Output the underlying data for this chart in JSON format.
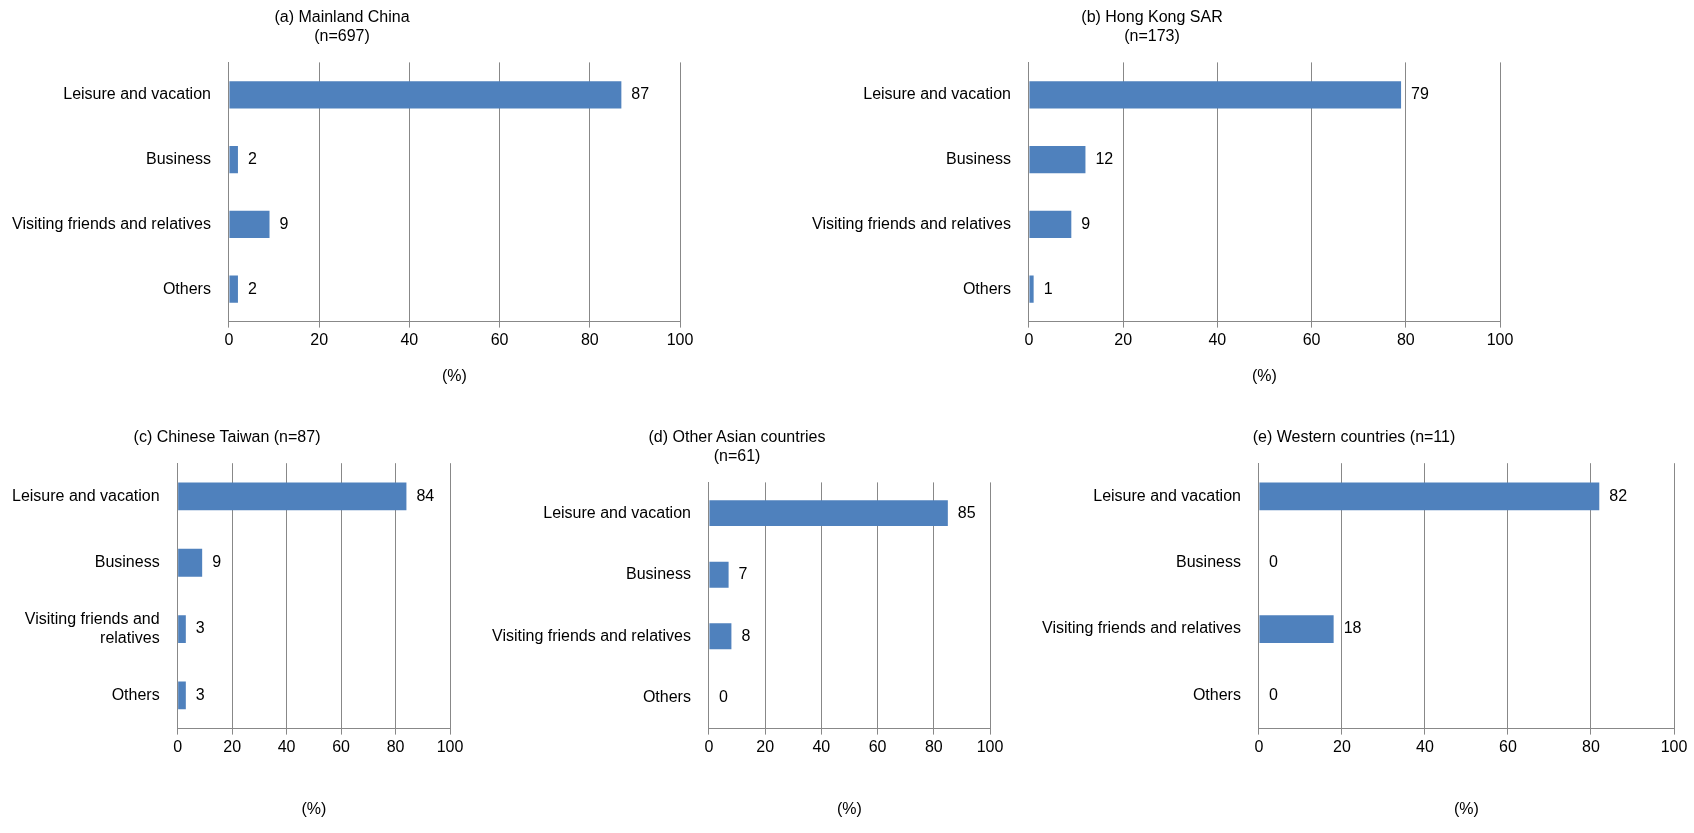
{
  "chart_data": [
    {
      "type": "bar",
      "orientation": "horizontal",
      "title": "(a) Mainland China\n(n=697)",
      "xlabel": "(%)",
      "categories": [
        "Leisure and vacation",
        "Business",
        "Visiting friends and relatives",
        "Others"
      ],
      "values": [
        87,
        2,
        9,
        2
      ],
      "color": "#4f81bd",
      "xlim": [
        0,
        100
      ],
      "xticks": [
        0,
        20,
        40,
        60,
        80,
        100
      ],
      "grid": "x",
      "data_labels": true
    },
    {
      "type": "bar",
      "orientation": "horizontal",
      "title": "(b) Hong Kong SAR\n(n=173)",
      "xlabel": "(%)",
      "categories": [
        "Leisure and vacation",
        "Business",
        "Visiting friends and relatives",
        "Others"
      ],
      "values": [
        79,
        12,
        9,
        1
      ],
      "color": "#4f81bd",
      "xlim": [
        0,
        100
      ],
      "xticks": [
        0,
        20,
        40,
        60,
        80,
        100
      ],
      "grid": "x",
      "data_labels": true
    },
    {
      "type": "bar",
      "orientation": "horizontal",
      "title": "(c) Chinese Taiwan (n=87)",
      "xlabel": "(%)",
      "categories": [
        "Leisure and vacation",
        "Business",
        "Visiting friends and relatives",
        "Others"
      ],
      "values": [
        84,
        9,
        3,
        3
      ],
      "color": "#4f81bd",
      "xlim": [
        0,
        100
      ],
      "xticks": [
        0,
        20,
        40,
        60,
        80,
        100
      ],
      "grid": "x",
      "data_labels": true
    },
    {
      "type": "bar",
      "orientation": "horizontal",
      "title": "(d) Other Asian countries\n(n=61)",
      "xlabel": "(%)",
      "categories": [
        "Leisure and vacation",
        "Business",
        "Visiting friends and relatives",
        "Others"
      ],
      "values": [
        85,
        7,
        8,
        0
      ],
      "color": "#4f81bd",
      "xlim": [
        0,
        100
      ],
      "xticks": [
        0,
        20,
        40,
        60,
        80,
        100
      ],
      "grid": "x",
      "data_labels": true
    },
    {
      "type": "bar",
      "orientation": "horizontal",
      "title": "(e) Western countries (n=11)",
      "xlabel": "(%)",
      "categories": [
        "Leisure and vacation",
        "Business",
        "Visiting friends and relatives",
        "Others"
      ],
      "values": [
        82,
        0,
        18,
        0
      ],
      "color": "#4f81bd",
      "xlim": [
        0,
        100
      ],
      "xticks": [
        0,
        20,
        40,
        60,
        80,
        100
      ],
      "grid": "x",
      "data_labels": true
    }
  ]
}
